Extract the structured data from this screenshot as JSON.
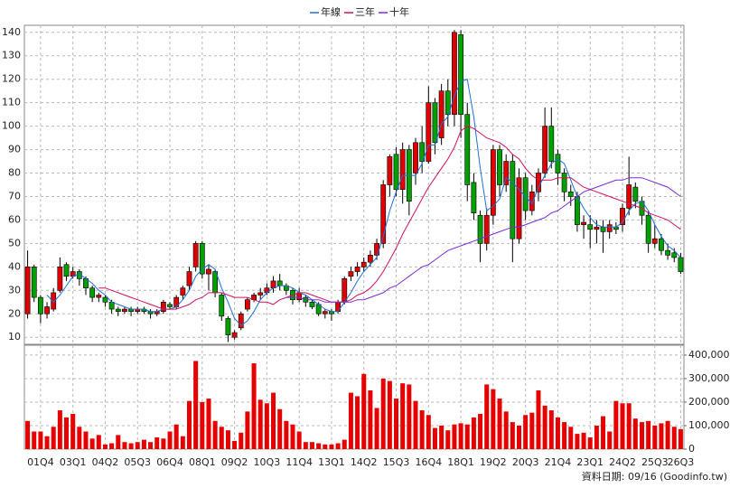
{
  "chart_data": {
    "type": "candlestick",
    "grid": true,
    "legend": "top",
    "categories": [
      null,
      null,
      "01Q4",
      null,
      null,
      null,
      null,
      "03Q1",
      null,
      null,
      null,
      null,
      "04Q2",
      null,
      null,
      null,
      null,
      "05Q3",
      null,
      null,
      null,
      null,
      "06Q4",
      null,
      null,
      null,
      null,
      "08Q1",
      null,
      null,
      null,
      null,
      "09Q2",
      null,
      null,
      null,
      null,
      "10Q3",
      null,
      null,
      null,
      null,
      "11Q4",
      null,
      null,
      null,
      null,
      "13Q1",
      null,
      null,
      null,
      null,
      "14Q2",
      null,
      null,
      null,
      null,
      "15Q3",
      null,
      null,
      null,
      null,
      "16Q4",
      null,
      null,
      null,
      null,
      "18Q1",
      null,
      null,
      null,
      null,
      "19Q2",
      null,
      null,
      null,
      null,
      "20Q3",
      null,
      null,
      null,
      null,
      "21Q4",
      null,
      null,
      null,
      null,
      "23Q1",
      null,
      null,
      null,
      null,
      "24Q2",
      null,
      null,
      null,
      null,
      "25Q3",
      null,
      null,
      null,
      "26Q3"
    ],
    "candles": {
      "up_color": "#e00000",
      "down_color": "#00a000",
      "open": [
        20,
        40,
        27,
        20,
        22,
        30,
        41,
        36,
        38,
        35,
        31,
        27,
        27,
        25,
        22,
        21,
        22,
        21,
        22,
        21,
        20,
        21,
        24,
        23,
        28,
        32,
        40,
        50,
        37,
        38,
        28,
        18,
        10,
        14,
        22,
        26,
        28,
        29,
        31,
        34,
        32,
        30,
        26,
        27,
        25,
        24,
        20,
        21,
        21,
        25,
        36,
        38,
        40,
        42,
        45,
        50,
        75,
        88,
        73,
        90,
        80,
        93,
        85,
        110,
        95,
        115,
        105,
        139,
        105,
        76,
        62,
        50,
        62,
        90,
        75,
        85,
        52,
        78,
        64,
        72,
        80,
        100,
        88,
        80,
        72,
        70,
        58,
        58,
        56,
        57,
        55,
        57,
        58,
        65,
        74,
        68,
        62,
        50,
        52,
        47,
        46,
        44
      ],
      "high": [
        47,
        41,
        28,
        25,
        31,
        44,
        42,
        40,
        39,
        36,
        32,
        29,
        28,
        26,
        23,
        23,
        23,
        23,
        23,
        22,
        22,
        26,
        25,
        28,
        32,
        40,
        51,
        51,
        41,
        39,
        29,
        19,
        13,
        21,
        27,
        29,
        31,
        33,
        36,
        37,
        33,
        31,
        31,
        28,
        26,
        25,
        22,
        22,
        26,
        36,
        40,
        42,
        44,
        47,
        52,
        77,
        88,
        91,
        93,
        92,
        95,
        100,
        117,
        112,
        118,
        120,
        141,
        141,
        110,
        80,
        64,
        65,
        92,
        92,
        88,
        88,
        82,
        80,
        75,
        82,
        108,
        108,
        90,
        82,
        75,
        72,
        62,
        62,
        60,
        60,
        60,
        59,
        67,
        87,
        76,
        70,
        64,
        58,
        54,
        50,
        48,
        46
      ],
      "low": [
        18,
        25,
        16,
        18,
        21,
        29,
        34,
        35,
        32,
        28,
        25,
        25,
        23,
        20,
        19,
        20,
        19,
        20,
        20,
        18,
        19,
        20,
        22,
        22,
        26,
        30,
        38,
        35,
        30,
        27,
        17,
        8,
        9,
        13,
        21,
        25,
        26,
        28,
        29,
        30,
        28,
        24,
        25,
        23,
        22,
        19,
        18,
        17,
        20,
        24,
        34,
        36,
        38,
        40,
        43,
        48,
        70,
        70,
        67,
        62,
        75,
        80,
        84,
        88,
        92,
        100,
        100,
        95,
        68,
        60,
        42,
        47,
        58,
        70,
        72,
        42,
        50,
        60,
        62,
        68,
        78,
        82,
        75,
        68,
        66,
        55,
        52,
        48,
        50,
        46,
        52,
        54,
        55,
        62,
        65,
        58,
        46,
        48,
        45,
        43,
        42,
        37
      ],
      "close": [
        40,
        27,
        20,
        23,
        29,
        40,
        36,
        38,
        35,
        31,
        27,
        28,
        25,
        22,
        21,
        22,
        21,
        22,
        21,
        20,
        21,
        25,
        23,
        27,
        31,
        38,
        50,
        37,
        39,
        29,
        19,
        11,
        12,
        20,
        26,
        28,
        29,
        31,
        34,
        32,
        30,
        26,
        29,
        25,
        23,
        20,
        21,
        20,
        25,
        35,
        38,
        40,
        42,
        45,
        50,
        75,
        87,
        73,
        90,
        68,
        93,
        85,
        110,
        93,
        115,
        105,
        140,
        105,
        75,
        63,
        50,
        62,
        90,
        75,
        85,
        52,
        78,
        64,
        72,
        80,
        100,
        85,
        80,
        72,
        70,
        58,
        59,
        56,
        57,
        55,
        58,
        56,
        65,
        75,
        68,
        62,
        50,
        52,
        47,
        45,
        44,
        38
      ]
    },
    "series": [
      {
        "name": "年線",
        "color": "#1f6fd6",
        "values": [
          null,
          null,
          null,
          28,
          25,
          28,
          32,
          36,
          37,
          35,
          33,
          30,
          28,
          25,
          24,
          23,
          22,
          22,
          22,
          21,
          21,
          22,
          22,
          23,
          26,
          30,
          36,
          39,
          41,
          39,
          31,
          25,
          18,
          15,
          17,
          21,
          26,
          29,
          31,
          32,
          32,
          31,
          29,
          28,
          26,
          24,
          22,
          21,
          21,
          25,
          29,
          34,
          38,
          41,
          44,
          53,
          64,
          72,
          79,
          79,
          79,
          84,
          92,
          92,
          101,
          104,
          113,
          119,
          120,
          104,
          82,
          64,
          66,
          69,
          78,
          76,
          73,
          70,
          67,
          74,
          79,
          84,
          86,
          84,
          77,
          70,
          65,
          61,
          58,
          57,
          57,
          57,
          59,
          64,
          67,
          68,
          64,
          58,
          53,
          49,
          47,
          44
        ]
      },
      {
        "name": "三年",
        "color": "#d0105a",
        "values": [
          null,
          null,
          null,
          null,
          null,
          null,
          null,
          null,
          null,
          null,
          null,
          31,
          31,
          30,
          29,
          28,
          27,
          26,
          25,
          24,
          23,
          22,
          22,
          22,
          23,
          24,
          26,
          27,
          29,
          29,
          29,
          28,
          27,
          27,
          27,
          26,
          25,
          25,
          24,
          26,
          27,
          28,
          29,
          29,
          28,
          27,
          26,
          25,
          25,
          25,
          26,
          28,
          29,
          31,
          34,
          38,
          43,
          48,
          54,
          59,
          64,
          69,
          74,
          78,
          82,
          86,
          91,
          98,
          100,
          99,
          97,
          95,
          94,
          93,
          91,
          88,
          86,
          82,
          79,
          77,
          77,
          77,
          78,
          78,
          78,
          76,
          74,
          73,
          72,
          71,
          70,
          69,
          68,
          67,
          66,
          65,
          63,
          62,
          61,
          60,
          58,
          56
        ]
      },
      {
        "name": "十年",
        "color": "#7a2ad6",
        "values": [
          null,
          null,
          null,
          null,
          null,
          null,
          null,
          null,
          null,
          null,
          null,
          null,
          null,
          null,
          null,
          null,
          null,
          null,
          null,
          null,
          null,
          null,
          null,
          null,
          null,
          null,
          null,
          null,
          null,
          null,
          null,
          null,
          null,
          null,
          null,
          null,
          null,
          null,
          null,
          null,
          27,
          27,
          27,
          26,
          26,
          26,
          25,
          25,
          25,
          25,
          25,
          26,
          26,
          27,
          28,
          29,
          31,
          32,
          34,
          36,
          38,
          40,
          41,
          43,
          45,
          47,
          48,
          49,
          50,
          51,
          52,
          53,
          54,
          55,
          56,
          57,
          57,
          58,
          59,
          60,
          61,
          63,
          64,
          66,
          68,
          70,
          72,
          73,
          74,
          75,
          76,
          77,
          77,
          78,
          78,
          78,
          77,
          76,
          75,
          74,
          72,
          70
        ]
      }
    ],
    "ylim": [
      7,
      143
    ],
    "yticks": [
      10,
      20,
      30,
      40,
      50,
      60,
      70,
      80,
      90,
      100,
      110,
      120,
      130,
      140
    ],
    "volume": {
      "color": "#e60000",
      "values": [
        120000,
        75000,
        75000,
        55000,
        95000,
        165000,
        135000,
        150000,
        95000,
        75000,
        45000,
        60000,
        20000,
        25000,
        60000,
        30000,
        25000,
        30000,
        40000,
        30000,
        50000,
        45000,
        75000,
        105000,
        55000,
        205000,
        375000,
        200000,
        215000,
        120000,
        95000,
        80000,
        35000,
        70000,
        160000,
        365000,
        210000,
        195000,
        240000,
        170000,
        120000,
        105000,
        75000,
        30000,
        30000,
        25000,
        20000,
        20000,
        25000,
        40000,
        240000,
        225000,
        320000,
        250000,
        175000,
        300000,
        290000,
        215000,
        280000,
        275000,
        205000,
        165000,
        145000,
        90000,
        100000,
        80000,
        105000,
        110000,
        105000,
        135000,
        150000,
        275000,
        255000,
        215000,
        160000,
        115000,
        100000,
        145000,
        155000,
        250000,
        185000,
        165000,
        135000,
        115000,
        95000,
        65000,
        70000,
        50000,
        100000,
        140000,
        75000,
        205000,
        195000,
        195000,
        130000,
        115000,
        120000,
        100000,
        110000,
        120000,
        95000,
        85000
      ]
    },
    "y2lim": [
      0,
      442000
    ],
    "y2ticks": [
      0,
      {
        "value": 100000,
        "label": "100,000"
      },
      {
        "value": 200000,
        "label": "200,000"
      },
      {
        "value": 300000,
        "label": "300,000"
      },
      {
        "value": 400000,
        "label": "400,000"
      }
    ],
    "footnote": "資料日期: 09/16 (Goodinfo.tw)"
  }
}
